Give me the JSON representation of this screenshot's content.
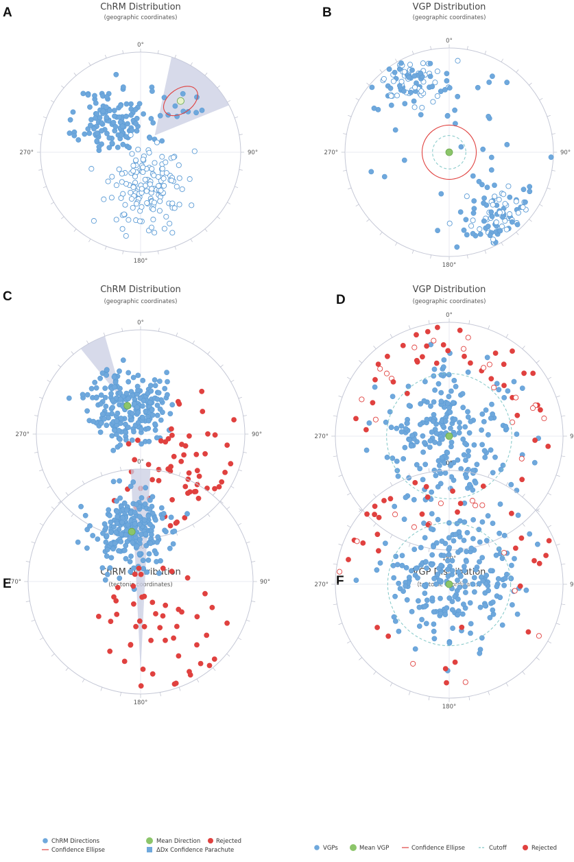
{
  "colors": {
    "blue": "#6fa8dc",
    "blue_stroke": "#5b9bd5",
    "red": "#e0413f",
    "green": "#8cc56a",
    "parachute": "#c9cde3",
    "axis": "#c5c8d6",
    "cutoff": "#7fc6c6"
  },
  "direction_labels": {
    "n": "0°",
    "e": "90°",
    "s": "180°",
    "w": "270°"
  },
  "legend_left": {
    "chrm_directions": "ChRM Directions",
    "confidence_ellipse": "Confidence Ellipse",
    "mean_direction": "Mean Direction",
    "dx_parachute": "ΔDx Confidence Parachute",
    "rejected": "Rejected"
  },
  "legend_right": {
    "vgps": "VGPs",
    "mean_vgp": "Mean VGP",
    "confidence_ellipse": "Confidence Ellipse",
    "cutoff": "Cutoff",
    "rejected": "Rejected"
  },
  "chart_data": [
    {
      "letter": "A",
      "type": "scatter",
      "projection": "equal-area stereonet",
      "title": "ChRM Distribution",
      "subtitle": "(geographic coordinates)",
      "seed": 11,
      "clusters": [
        {
          "kind": "blue",
          "mean_dec": 318,
          "r": 0.42,
          "spread": 0.17,
          "n": 130
        },
        {
          "kind": "open",
          "mean_dec": 168,
          "r": 0.35,
          "spread": 0.2,
          "n": 150
        },
        {
          "kind": "blue",
          "mean_dec": 35,
          "r": 0.55,
          "spread": 0.14,
          "n": 14
        }
      ],
      "mean": {
        "dec": 38,
        "r": 0.65,
        "color": "light"
      },
      "ellipse": {
        "dec": 38,
        "r": 0.65,
        "a": 0.38,
        "b": 0.24,
        "rot": -35
      },
      "parachute": {
        "dec1": 18,
        "dec2": 62,
        "r0": 0.22
      }
    },
    {
      "letter": "B",
      "type": "scatter",
      "projection": "equal-area",
      "title": "VGP Distribution",
      "subtitle": "(geographic coordinates)",
      "seed": 23,
      "clusters": [
        {
          "kind": "mix",
          "mean_dec": 330,
          "r": 0.82,
          "spread": 0.16,
          "n": 110
        },
        {
          "kind": "mix",
          "mean_dec": 145,
          "r": 0.82,
          "spread": 0.16,
          "n": 110
        },
        {
          "kind": "blue",
          "mean_dec": 0,
          "r": 0.45,
          "spread": 0.6,
          "n": 60
        }
      ],
      "mean": {
        "dec": 0,
        "r": 0,
        "color": "green"
      },
      "circle": {
        "r": 0.26
      },
      "cutoff": {
        "r": 0.16
      }
    },
    {
      "letter": "C",
      "type": "scatter",
      "projection": "equal-area stereonet",
      "title": "ChRM Distribution",
      "subtitle": "(geographic coordinates)",
      "seed": 37,
      "clusters": [
        {
          "kind": "blue",
          "mean_dec": 335,
          "r": 0.3,
          "spread": 0.18,
          "n": 230
        },
        {
          "kind": "red",
          "mean_dec": 120,
          "r": 0.55,
          "spread": 0.32,
          "n": 70
        }
      ],
      "mean": {
        "dec": 335,
        "r": 0.3,
        "color": "green"
      },
      "parachute": {
        "dec1": 325,
        "dec2": 340,
        "r0": 0.35
      }
    },
    {
      "letter": "D",
      "type": "scatter",
      "projection": "equal-area",
      "title": "VGP Distribution",
      "subtitle": "(geographic coordinates)",
      "seed": 41,
      "clusters": [
        {
          "kind": "blue",
          "mean_dec": 0,
          "r": 0,
          "spread": 0.3,
          "n": 230
        },
        {
          "kind": "ring_red",
          "mean_dec": 0,
          "r": 0.78,
          "spread": 0.12,
          "n": 60
        }
      ],
      "mean": {
        "dec": 0,
        "r": 0,
        "color": "green"
      },
      "cutoff": {
        "r": 0.55
      }
    },
    {
      "letter": "E",
      "type": "scatter",
      "projection": "equal-area stereonet",
      "title": "ChRM Distribution",
      "subtitle": "(tectonic coordinates)",
      "seed": 53,
      "clusters": [
        {
          "kind": "blue",
          "mean_dec": 350,
          "r": 0.45,
          "spread": 0.18,
          "n": 230
        },
        {
          "kind": "red",
          "mean_dec": 150,
          "r": 0.55,
          "spread": 0.35,
          "n": 60
        }
      ],
      "mean": {
        "dec": 350,
        "r": 0.45,
        "color": "green"
      },
      "parachute": {
        "dec1": 355,
        "dec2": 5,
        "r0": 0.8
      }
    },
    {
      "letter": "F",
      "type": "scatter",
      "projection": "equal-area",
      "title": "VGP Distribution",
      "subtitle": "(tectonic coordinates)",
      "seed": 67,
      "clusters": [
        {
          "kind": "blue",
          "mean_dec": 0,
          "r": 0,
          "spread": 0.28,
          "n": 230
        },
        {
          "kind": "ring_red",
          "mean_dec": 0,
          "r": 0.8,
          "spread": 0.12,
          "n": 50
        }
      ],
      "mean": {
        "dec": 0,
        "r": 0,
        "color": "green"
      },
      "cutoff": {
        "r": 0.54
      }
    }
  ]
}
